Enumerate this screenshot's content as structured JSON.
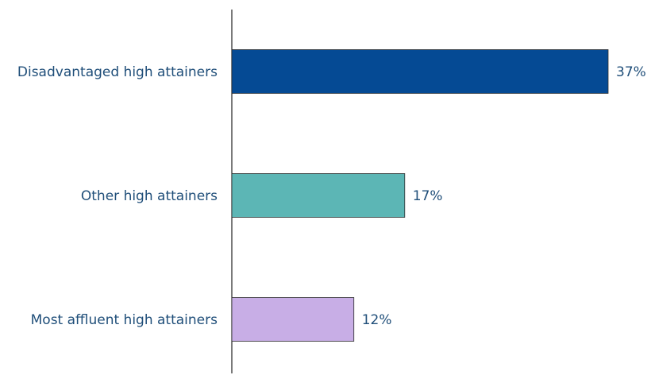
{
  "chart_data": {
    "type": "bar",
    "orientation": "horizontal",
    "categories": [
      "Disadvantaged high attainers",
      "Other high attainers",
      "Most affluent high attainers"
    ],
    "values": [
      37,
      17,
      12
    ],
    "value_labels": [
      "37%",
      "17%",
      "12%"
    ],
    "colors": [
      "#054a94",
      "#5cb6b5",
      "#c8aee6"
    ],
    "unit": "%",
    "title": "",
    "xlabel": "",
    "ylabel": "",
    "xlim": [
      0,
      37
    ],
    "grid": false,
    "legend": "none"
  }
}
